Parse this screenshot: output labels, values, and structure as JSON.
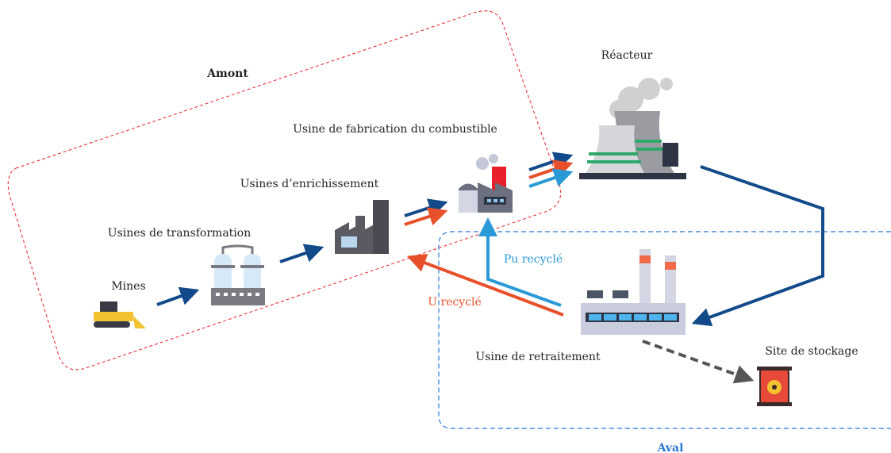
{
  "regions": {
    "upstream": "Amont",
    "downstream": "Aval"
  },
  "nodes": [
    {
      "label": "Mines"
    },
    {
      "label": "Usines de transformation"
    },
    {
      "label": "Usines d’enrichissement"
    },
    {
      "label": "Usine de fabrication du combustible"
    },
    {
      "label": "Réacteur"
    },
    {
      "label": "Usine de retraitement"
    },
    {
      "label": "Site de stockage"
    }
  ],
  "flows": {
    "pu": "Pu recyclé",
    "u": "U recyclé"
  }
}
